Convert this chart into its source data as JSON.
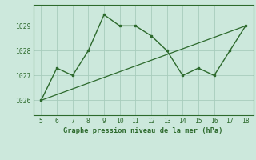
{
  "x": [
    5,
    6,
    7,
    8,
    9,
    10,
    11,
    12,
    13,
    14,
    15,
    16,
    17,
    18
  ],
  "y": [
    1026.0,
    1027.3,
    1027.0,
    1028.0,
    1029.45,
    1029.0,
    1029.0,
    1028.6,
    1028.0,
    1027.0,
    1027.3,
    1027.0,
    1028.0,
    1029.0
  ],
  "trend_x": [
    5,
    18
  ],
  "trend_y": [
    1026.0,
    1029.0
  ],
  "line_color": "#2d6a2d",
  "bg_color": "#cce8dc",
  "grid_color": "#a8ccbc",
  "xlabel": "Graphe pression niveau de la mer (hPa)",
  "yticks": [
    1026,
    1027,
    1028,
    1029
  ],
  "xticks": [
    5,
    6,
    7,
    8,
    9,
    10,
    11,
    12,
    13,
    14,
    15,
    16,
    17,
    18
  ],
  "ylim": [
    1025.4,
    1029.85
  ],
  "xlim": [
    4.5,
    18.5
  ]
}
